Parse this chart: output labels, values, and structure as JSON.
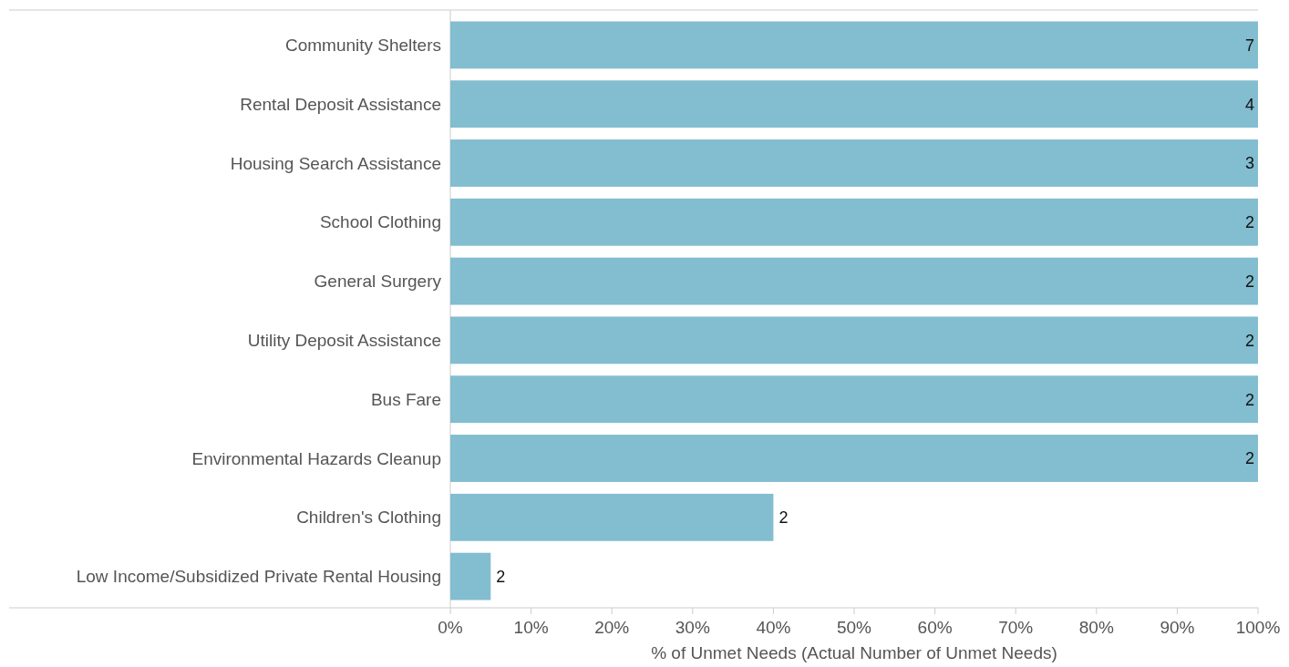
{
  "chart_data": {
    "type": "bar",
    "orientation": "horizontal",
    "xlabel": "% of Unmet Needs (Actual Number of Unmet Needs)",
    "categories": [
      "Community Shelters",
      "Rental Deposit Assistance",
      "Housing Search Assistance",
      "School Clothing",
      "General Surgery",
      "Utility Deposit Assistance",
      "Bus Fare",
      "Environmental Hazards Cleanup",
      "Children's Clothing",
      "Low Income/Subsidized Private Rental Housing"
    ],
    "values": [
      100,
      100,
      100,
      100,
      100,
      100,
      100,
      100,
      40,
      5
    ],
    "annotations": [
      {
        "text": "7",
        "x": 100,
        "y": "Community Shelters"
      },
      {
        "text": "4",
        "x": 100,
        "y": "Rental Deposit Assistance"
      },
      {
        "text": "3",
        "x": 100,
        "y": "Housing Search Assistance"
      },
      {
        "text": "2",
        "x": 100,
        "y": "School Clothing"
      },
      {
        "text": "2",
        "x": 100,
        "y": "General Surgery"
      },
      {
        "text": "2",
        "x": 100,
        "y": "Utility Deposit Assistance"
      },
      {
        "text": "2",
        "x": 100,
        "y": "Bus Fare"
      },
      {
        "text": "2",
        "x": 100,
        "y": "Environmental Hazards Cleanup"
      },
      {
        "text": "2",
        "x": 40,
        "y": "Children's Clothing"
      },
      {
        "text": "2",
        "x": 5,
        "y": "Low Income/Subsidized Private Rental Housing"
      }
    ],
    "color": "#82bdd0",
    "xlim": [
      0,
      100
    ],
    "xticks": [
      {
        "value": 0,
        "label": "0%"
      },
      {
        "value": 10,
        "label": "10%"
      },
      {
        "value": 20,
        "label": "20%"
      },
      {
        "value": 30,
        "label": "30%"
      },
      {
        "value": 40,
        "label": "40%"
      },
      {
        "value": 50,
        "label": "50%"
      },
      {
        "value": 60,
        "label": "60%"
      },
      {
        "value": 70,
        "label": "70%"
      },
      {
        "value": 80,
        "label": "80%"
      },
      {
        "value": 90,
        "label": "90%"
      },
      {
        "value": 100,
        "label": "100%"
      }
    ],
    "grid": false
  }
}
